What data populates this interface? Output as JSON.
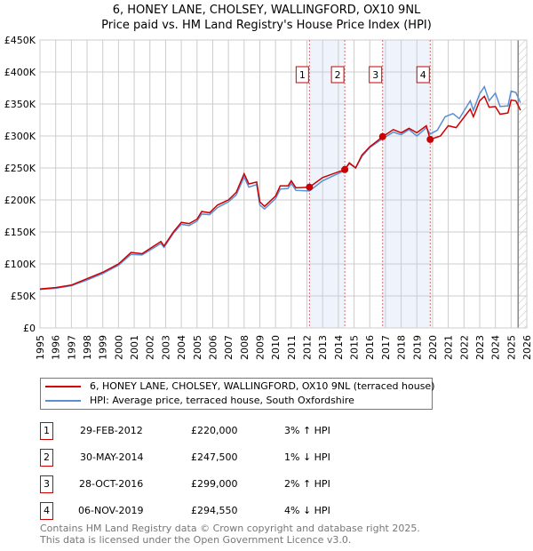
{
  "title": "6, HONEY LANE, CHOLSEY, WALLINGFORD, OX10 9NL",
  "subtitle": "Price paid vs. HM Land Registry's House Price Index (HPI)",
  "chart_data": {
    "type": "line",
    "title": "6, HONEY LANE, CHOLSEY, WALLINGFORD, OX10 9NL",
    "subtitle": "Price paid vs. HM Land Registry's House Price Index (HPI)",
    "xlim": [
      1995,
      2026
    ],
    "ylim": [
      0,
      450000
    ],
    "grid": true,
    "xticks": [
      "1995",
      "1996",
      "1997",
      "1998",
      "1999",
      "2000",
      "2001",
      "2002",
      "2003",
      "2004",
      "2005",
      "2006",
      "2007",
      "2008",
      "2009",
      "2010",
      "2011",
      "2012",
      "2013",
      "2014",
      "2015",
      "2016",
      "2017",
      "2018",
      "2019",
      "2020",
      "2021",
      "2022",
      "2023",
      "2024",
      "2025",
      "2026"
    ],
    "yticks": [
      {
        "v": 0,
        "l": "£0"
      },
      {
        "v": 50000,
        "l": "£50K"
      },
      {
        "v": 100000,
        "l": "£100K"
      },
      {
        "v": 150000,
        "l": "£150K"
      },
      {
        "v": 200000,
        "l": "£200K"
      },
      {
        "v": 250000,
        "l": "£250K"
      },
      {
        "v": 300000,
        "l": "£300K"
      },
      {
        "v": 350000,
        "l": "£350K"
      },
      {
        "v": 400000,
        "l": "£400K"
      },
      {
        "v": 450000,
        "l": "£450K"
      }
    ],
    "series": [
      {
        "name": "6, HONEY LANE, CHOLSEY, WALLINGFORD, OX10 9NL (terraced house)",
        "color": "#cc0000",
        "x": [
          1995,
          1996,
          1997,
          1998,
          1999,
          2000,
          2000.8,
          2001.5,
          2002.7,
          2002.9,
          2003.5,
          2004,
          2004.5,
          2005,
          2005.3,
          2005.8,
          2006.3,
          2007,
          2007.5,
          2008,
          2008.3,
          2008.8,
          2009,
          2009.3,
          2010,
          2010.3,
          2010.8,
          2011,
          2011.3,
          2012.16,
          2013,
          2014.41,
          2014.7,
          2015.1,
          2015.5,
          2016,
          2016.83,
          2017.5,
          2018,
          2018.5,
          2019,
          2019.6,
          2019.85,
          2020.5,
          2021,
          2021.5,
          2022.4,
          2022.6,
          2023,
          2023.3,
          2023.6,
          2024,
          2024.3,
          2024.8,
          2025,
          2025.3,
          2025.6
        ],
        "y": [
          61000,
          63000,
          67000,
          77000,
          87000,
          100000,
          118000,
          116000,
          135000,
          128000,
          150000,
          165000,
          163000,
          170000,
          182000,
          180000,
          192000,
          200000,
          212000,
          241000,
          225000,
          228000,
          197000,
          190000,
          206000,
          222000,
          222000,
          230000,
          219000,
          220000,
          235000,
          247500,
          258000,
          250000,
          270000,
          283000,
          299000,
          310000,
          305000,
          312000,
          305000,
          316000,
          294550,
          300000,
          316000,
          313000,
          342000,
          330000,
          355000,
          362000,
          345000,
          346000,
          334000,
          336000,
          356000,
          355000,
          340000
        ]
      },
      {
        "name": "HPI: Average price, terraced house, South Oxfordshire",
        "color": "#5b8fd4",
        "x": [
          1995,
          1996,
          1997,
          1998,
          1999,
          2000,
          2000.8,
          2001.5,
          2002.7,
          2002.9,
          2003.5,
          2004,
          2004.5,
          2005,
          2005.3,
          2005.8,
          2006.3,
          2007,
          2007.5,
          2008,
          2008.3,
          2008.8,
          2009,
          2009.3,
          2010,
          2010.3,
          2010.8,
          2011,
          2011.3,
          2012.16,
          2013,
          2014.41,
          2014.7,
          2015.1,
          2015.5,
          2016,
          2016.83,
          2017.5,
          2018,
          2018.5,
          2019,
          2019.6,
          2019.85,
          2020.3,
          2020.8,
          2021.3,
          2021.7,
          2022.4,
          2022.6,
          2023,
          2023.3,
          2023.6,
          2024,
          2024.3,
          2024.8,
          2025,
          2025.3,
          2025.6
        ],
        "y": [
          60000,
          62000,
          66000,
          75000,
          85000,
          98000,
          115000,
          114000,
          132000,
          126000,
          148000,
          162000,
          160000,
          167000,
          178000,
          177000,
          188000,
          197000,
          208000,
          236000,
          220000,
          224000,
          192000,
          186000,
          202000,
          217000,
          218000,
          226000,
          215000,
          214000,
          230000,
          246000,
          257000,
          250000,
          268000,
          282000,
          296000,
          306000,
          302000,
          310000,
          300000,
          313000,
          303000,
          309000,
          330000,
          335000,
          327000,
          355000,
          340000,
          366000,
          377000,
          355000,
          367000,
          346000,
          347000,
          370000,
          368000,
          352000
        ]
      }
    ],
    "sales": [
      {
        "label": "1",
        "x": 2012.16,
        "y": 220000
      },
      {
        "label": "2",
        "x": 2014.41,
        "y": 247500
      },
      {
        "label": "3",
        "x": 2016.82,
        "y": 299000
      },
      {
        "label": "4",
        "x": 2019.85,
        "y": 294550
      }
    ],
    "shaded_ranges": [
      [
        2012.16,
        2014.41
      ],
      [
        2016.82,
        2019.85
      ]
    ],
    "hatched_from": 2025.45,
    "legend_position": "below"
  },
  "legend": [
    "6, HONEY LANE, CHOLSEY, WALLINGFORD, OX10 9NL (terraced house)",
    "HPI: Average price, terraced house, South Oxfordshire"
  ],
  "transactions": [
    {
      "num": "1",
      "date": "29-FEB-2012",
      "price": "£220,000",
      "hpi": "3% ↑ HPI"
    },
    {
      "num": "2",
      "date": "30-MAY-2014",
      "price": "£247,500",
      "hpi": "1% ↓ HPI"
    },
    {
      "num": "3",
      "date": "28-OCT-2016",
      "price": "£299,000",
      "hpi": "2% ↑ HPI"
    },
    {
      "num": "4",
      "date": "06-NOV-2019",
      "price": "£294,550",
      "hpi": "4% ↓ HPI"
    }
  ],
  "footer": [
    "Contains HM Land Registry data © Crown copyright and database right 2025.",
    "This data is licensed under the Open Government Licence v3.0."
  ]
}
